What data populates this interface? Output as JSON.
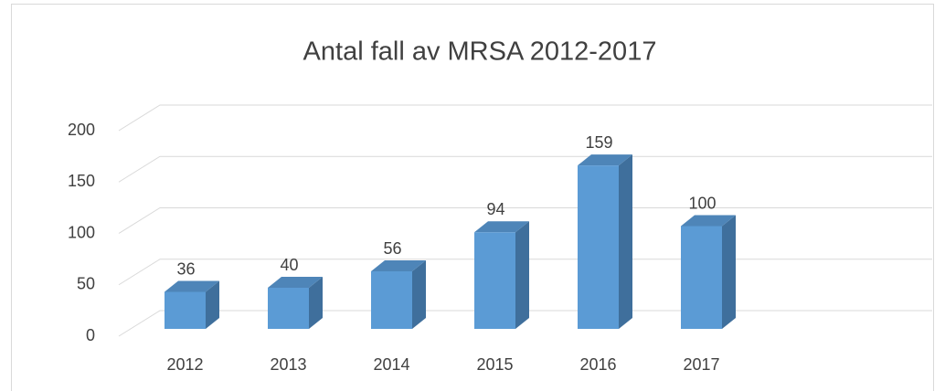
{
  "chart_data": {
    "type": "bar",
    "title": "Antal fall av MRSA 2012-2017",
    "categories": [
      "2012",
      "2013",
      "2014",
      "2015",
      "2016",
      "2017"
    ],
    "values": [
      36,
      40,
      56,
      94,
      159,
      100
    ],
    "color": "#5b9bd5",
    "ylim": [
      0,
      200
    ],
    "yticks": [
      0,
      50,
      100,
      150,
      200
    ],
    "grid": true
  }
}
